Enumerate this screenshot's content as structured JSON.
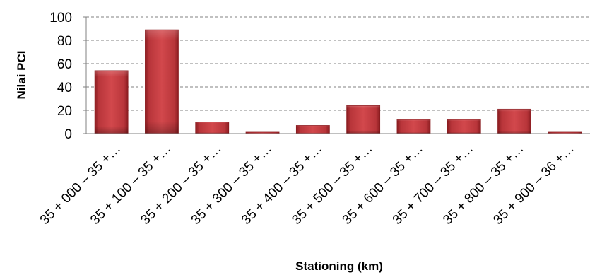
{
  "chart_data": {
    "type": "bar",
    "title": "",
    "xlabel": "Stationing (km)",
    "ylabel": "Nilai PCI",
    "ylim": [
      0,
      100
    ],
    "yticks": [
      0,
      20,
      40,
      60,
      80,
      100
    ],
    "grid": true,
    "legend": "none",
    "categories": [
      "35 + 000 – 35 +…",
      "35 + 100 – 35 +…",
      "35 + 200 – 35 +…",
      "35 + 300 – 35 +…",
      "35 + 400 – 35 +…",
      "35 + 500 – 35 +…",
      "35 + 600 – 35 +…",
      "35 + 700 – 35 +…",
      "35 + 800 – 35 +…",
      "35 + 900 – 36 +…"
    ],
    "values": [
      54,
      89,
      10,
      1,
      7,
      24,
      12,
      12,
      21,
      1
    ],
    "colors": {
      "bar": "#c0383c",
      "bar_dark": "#8a1c20",
      "bar_light": "#e07478",
      "grid": "#808080",
      "axis": "#808080"
    }
  }
}
